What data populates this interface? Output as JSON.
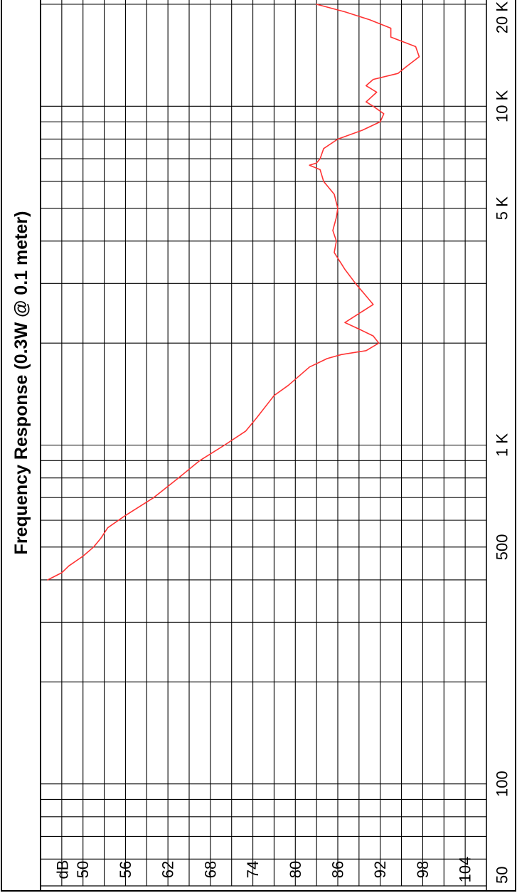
{
  "chart_data": {
    "type": "line",
    "title": "Frequency Response (0.3W @ 0.1 meter)",
    "x_scale": "log",
    "xlim": [
      50,
      20000
    ],
    "ylim": [
      44,
      107
    ],
    "y_unit_label": "dB",
    "x_tick_labels": [
      {
        "value": 50,
        "label": "50"
      },
      {
        "value": 100,
        "label": "100"
      },
      {
        "value": 500,
        "label": "500"
      },
      {
        "value": 1000,
        "label": "1 K"
      },
      {
        "value": 5000,
        "label": "5 K"
      },
      {
        "value": 10000,
        "label": "10 K"
      },
      {
        "value": 20000,
        "label": "20 K"
      }
    ],
    "y_tick_labels": [
      {
        "value": 104,
        "label": "104"
      },
      {
        "value": 98,
        "label": "98"
      },
      {
        "value": 92,
        "label": "92"
      },
      {
        "value": 86,
        "label": "86"
      },
      {
        "value": 80,
        "label": "80"
      },
      {
        "value": 74,
        "label": "74"
      },
      {
        "value": 68,
        "label": "68"
      },
      {
        "value": 62,
        "label": "62"
      },
      {
        "value": 56,
        "label": "56"
      },
      {
        "value": 50,
        "label": "50"
      }
    ],
    "x_gridlines": [
      50,
      60,
      70,
      80,
      90,
      100,
      200,
      300,
      400,
      500,
      600,
      700,
      800,
      900,
      1000,
      2000,
      3000,
      4000,
      5000,
      6000,
      7000,
      8000,
      9000,
      10000,
      20000
    ],
    "y_gridlines": [
      44,
      47,
      50,
      53,
      56,
      59,
      62,
      65,
      68,
      71,
      74,
      77,
      80,
      83,
      86,
      89,
      92,
      95,
      98,
      101,
      104,
      107
    ],
    "grid": true,
    "series": [
      {
        "color": "#ff3333",
        "x": [
          400,
          420,
          440,
          470,
          500,
          530,
          570,
          620,
          700,
          800,
          900,
          1000,
          1100,
          1200,
          1400,
          1500,
          1700,
          1800,
          1850,
          1900,
          2000,
          2100,
          2200,
          2300,
          2600,
          3000,
          3300,
          3700,
          4000,
          4300,
          4700,
          5000,
          5500,
          6000,
          6500,
          6700,
          6800,
          7000,
          7500,
          8000,
          8500,
          9000,
          9500,
          10000,
          10300,
          11000,
          11500,
          12000,
          12500,
          13000,
          14000,
          15000,
          16000,
          17000,
          18000,
          19000,
          20000
        ],
        "y": [
          45.0,
          47.0,
          48.0,
          50.0,
          51.5,
          52.5,
          53.5,
          56.0,
          60.0,
          63.5,
          66.5,
          70.0,
          73.0,
          74.5,
          77.0,
          79.0,
          82.0,
          84.5,
          86.5,
          90.0,
          91.8,
          91.0,
          89.0,
          87.0,
          91.0,
          88.5,
          87.0,
          85.5,
          85.8,
          85.3,
          85.8,
          86.0,
          85.5,
          84.0,
          83.5,
          82.0,
          83.0,
          83.5,
          84.0,
          86.0,
          89.5,
          92.0,
          92.5,
          91.0,
          90.0,
          91.5,
          90.0,
          91.0,
          94.5,
          95.5,
          97.5,
          97.0,
          93.5,
          93.5,
          90.5,
          87.0,
          83.0
        ]
      }
    ]
  }
}
